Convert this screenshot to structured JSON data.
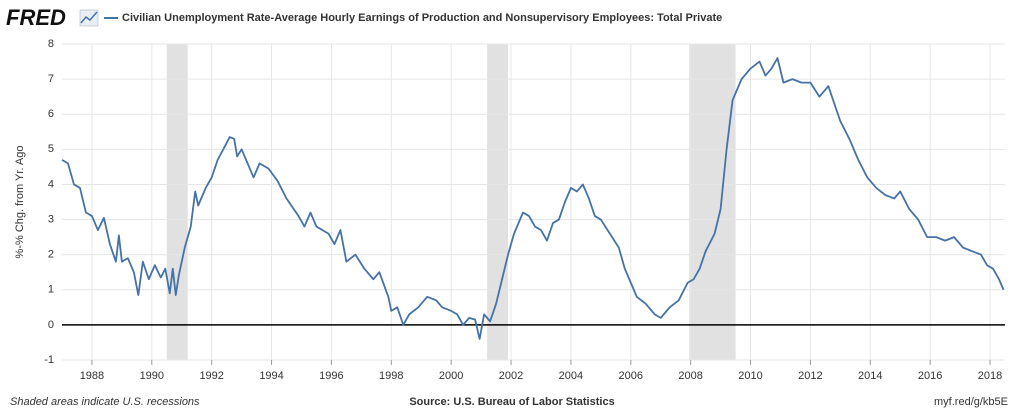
{
  "chart_data": {
    "type": "line",
    "logo": "FRED",
    "title": "Civilian Unemployment Rate-Average Hourly Earnings of Production and Nonsupervisory Employees: Total Private",
    "y_label": "%-% Chg. from Yr. Ago",
    "footer_left": "Shaded areas indicate U.S. recessions",
    "source": "Source: U.S. Bureau of Labor Statistics",
    "link": "myf.red/g/kb5E",
    "xlim": [
      1987,
      2018.5
    ],
    "xticks": [
      1988,
      1990,
      1992,
      1994,
      1996,
      1998,
      2000,
      2002,
      2004,
      2006,
      2008,
      2010,
      2012,
      2014,
      2016,
      2018
    ],
    "ylim": [
      -1,
      8
    ],
    "yticks": [
      -1,
      0,
      1,
      2,
      3,
      4,
      5,
      6,
      7,
      8
    ],
    "grid": true,
    "zero_line_color": "#000000",
    "recessions": [
      [
        1990.5,
        1991.2
      ],
      [
        2001.2,
        2001.9
      ],
      [
        2007.95,
        2009.5
      ]
    ],
    "recession_color": "#e1e1e1",
    "x": [
      1987.0,
      1987.2,
      1987.4,
      1987.6,
      1987.8,
      1988.0,
      1988.2,
      1988.4,
      1988.6,
      1988.8,
      1988.9,
      1989.0,
      1989.2,
      1989.4,
      1989.55,
      1989.7,
      1989.9,
      1990.1,
      1990.3,
      1990.45,
      1990.6,
      1990.7,
      1990.8,
      1990.9,
      1991.1,
      1991.3,
      1991.45,
      1991.55,
      1991.8,
      1992.0,
      1992.2,
      1992.45,
      1992.6,
      1992.75,
      1992.85,
      1993.0,
      1993.2,
      1993.4,
      1993.6,
      1993.9,
      1994.2,
      1994.5,
      1994.9,
      1995.1,
      1995.3,
      1995.5,
      1995.9,
      1996.1,
      1996.3,
      1996.5,
      1996.8,
      1997.1,
      1997.4,
      1997.6,
      1997.9,
      1998.0,
      1998.2,
      1998.4,
      1998.6,
      1998.9,
      1999.2,
      1999.5,
      1999.7,
      2000.0,
      2000.2,
      2000.4,
      2000.6,
      2000.8,
      2000.95,
      2001.1,
      2001.3,
      2001.5,
      2001.7,
      2001.9,
      2002.1,
      2002.4,
      2002.6,
      2002.8,
      2003.0,
      2003.2,
      2003.4,
      2003.6,
      2003.8,
      2004.0,
      2004.2,
      2004.4,
      2004.6,
      2004.8,
      2005.0,
      2005.3,
      2005.6,
      2005.8,
      2006.0,
      2006.2,
      2006.5,
      2006.8,
      2007.0,
      2007.3,
      2007.6,
      2007.9,
      2008.1,
      2008.3,
      2008.5,
      2008.8,
      2009.0,
      2009.2,
      2009.4,
      2009.7,
      2010.0,
      2010.3,
      2010.5,
      2010.7,
      2010.9,
      2011.1,
      2011.4,
      2011.7,
      2012.0,
      2012.3,
      2012.6,
      2012.8,
      2013.0,
      2013.3,
      2013.6,
      2013.9,
      2014.2,
      2014.5,
      2014.8,
      2015.0,
      2015.3,
      2015.6,
      2015.9,
      2016.2,
      2016.5,
      2016.8,
      2017.1,
      2017.4,
      2017.7,
      2017.9,
      2018.1,
      2018.3,
      2018.45
    ],
    "series": [
      {
        "name": "Civilian Unemployment Rate-Average Hourly Earnings of Production and Nonsupervisory Employees: Total Private",
        "color": "#4572a7",
        "values": [
          4.7,
          4.6,
          4.0,
          3.9,
          3.2,
          3.1,
          2.7,
          3.05,
          2.3,
          1.8,
          2.55,
          1.8,
          1.9,
          1.5,
          0.85,
          1.8,
          1.3,
          1.7,
          1.35,
          1.6,
          0.9,
          1.6,
          0.85,
          1.4,
          2.2,
          2.8,
          3.8,
          3.4,
          3.9,
          4.2,
          4.7,
          5.1,
          5.35,
          5.3,
          4.8,
          5.0,
          4.6,
          4.2,
          4.6,
          4.45,
          4.1,
          3.6,
          3.1,
          2.8,
          3.2,
          2.8,
          2.6,
          2.3,
          2.7,
          1.8,
          2.0,
          1.6,
          1.3,
          1.5,
          0.8,
          0.4,
          0.5,
          0.0,
          0.3,
          0.5,
          0.8,
          0.7,
          0.5,
          0.4,
          0.3,
          0.0,
          0.2,
          0.15,
          -0.4,
          0.3,
          0.1,
          0.6,
          1.3,
          2.0,
          2.6,
          3.2,
          3.1,
          2.8,
          2.7,
          2.4,
          2.9,
          3.0,
          3.5,
          3.9,
          3.8,
          4.0,
          3.6,
          3.1,
          3.0,
          2.6,
          2.2,
          1.6,
          1.2,
          0.8,
          0.6,
          0.3,
          0.2,
          0.5,
          0.7,
          1.2,
          1.3,
          1.6,
          2.1,
          2.6,
          3.3,
          5.0,
          6.4,
          7.0,
          7.3,
          7.5,
          7.1,
          7.3,
          7.6,
          6.9,
          7.0,
          6.9,
          6.9,
          6.5,
          6.8,
          6.3,
          5.8,
          5.3,
          4.7,
          4.2,
          3.9,
          3.7,
          3.6,
          3.8,
          3.3,
          3.0,
          2.5,
          2.5,
          2.4,
          2.5,
          2.2,
          2.1,
          2.0,
          1.7,
          1.6,
          1.3,
          1.0
        ]
      }
    ]
  }
}
